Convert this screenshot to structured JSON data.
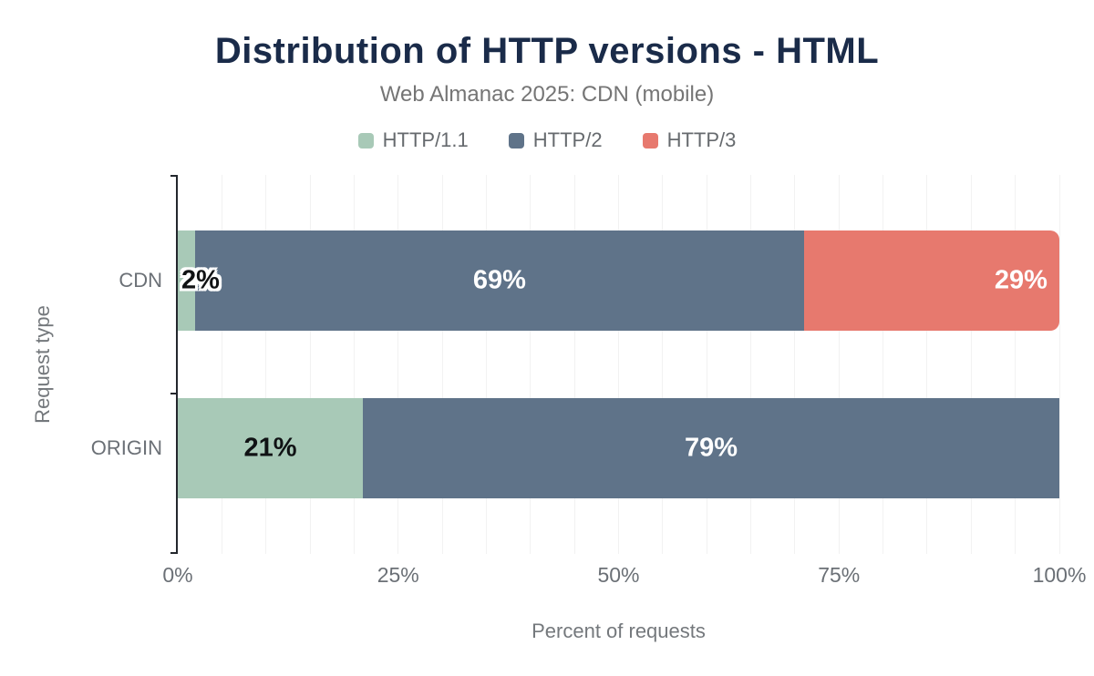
{
  "chart_data": {
    "type": "bar",
    "stacked": true,
    "orientation": "horizontal",
    "title": "Distribution of HTTP versions - HTML",
    "subtitle": "Web Almanac 2025: CDN (mobile)",
    "xlabel": "Percent of requests",
    "ylabel": "Request type",
    "xlim": [
      0,
      100
    ],
    "minor_grid_step": 5,
    "grid": "vertical minor gridlines every 5%",
    "legend_position": "top",
    "categories": [
      "CDN",
      "ORIGIN"
    ],
    "series": [
      {
        "name": "HTTP/1.1",
        "color": "#a8c9b7",
        "values": [
          2,
          21
        ]
      },
      {
        "name": "HTTP/2",
        "color": "#5f7389",
        "values": [
          69,
          79
        ]
      },
      {
        "name": "HTTP/3",
        "color": "#e7796e",
        "values": [
          29,
          0
        ]
      }
    ],
    "xticks": [
      {
        "value": 0,
        "label": "0%"
      },
      {
        "value": 25,
        "label": "25%"
      },
      {
        "value": 50,
        "label": "50%"
      },
      {
        "value": 75,
        "label": "75%"
      },
      {
        "value": 100,
        "label": "100%"
      }
    ],
    "bars": [
      {
        "category": "CDN",
        "segments": [
          {
            "series": "HTTP/1.1",
            "value": 2,
            "label": "2%",
            "label_theme": "dark-outlined",
            "label_align": "start"
          },
          {
            "series": "HTTP/2",
            "value": 69,
            "label": "69%",
            "label_theme": "light",
            "label_align": "center"
          },
          {
            "series": "HTTP/3",
            "value": 29,
            "label": "29%",
            "label_theme": "light",
            "label_align": "end",
            "rounded_end": true
          }
        ]
      },
      {
        "category": "ORIGIN",
        "segments": [
          {
            "series": "HTTP/1.1",
            "value": 21,
            "label": "21%",
            "label_theme": "dark",
            "label_align": "center"
          },
          {
            "series": "HTTP/2",
            "value": 79,
            "label": "79%",
            "label_theme": "light",
            "label_align": "center"
          }
        ]
      }
    ],
    "colors": {
      "title": "#1a2b49",
      "subtitle": "#757575",
      "axis_text": "#6b7076",
      "grid": "#f2f2f2",
      "axis_line": "#23272d"
    }
  }
}
